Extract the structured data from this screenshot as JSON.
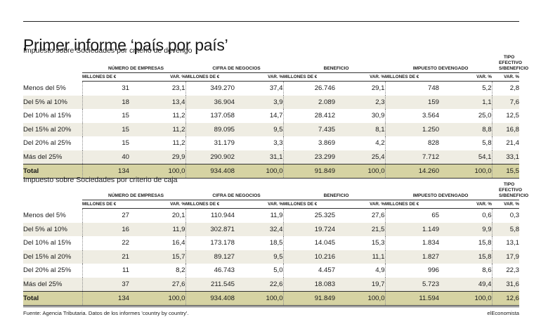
{
  "title": "Primer informe ‘país por país’",
  "source": "Fuente: Agencia Tributaria. Datos de los informes 'country by country'.",
  "brand": "elEconomista",
  "chart_data": [
    {
      "type": "table",
      "title": "Impuesto sobre Sociedades por criterio de devengo",
      "groups": [
        "NÚMERO DE EMPRESAS",
        "CIFRA DE NEGOCIOS",
        "BENEFICIO",
        "IMPUESTO DEVENGADO",
        "TIPO EFECTIVO S/BENEFICIO"
      ],
      "subheaders": [
        "MILLONES DE €",
        "VAR. %"
      ],
      "rows": [
        {
          "label": "Menos del 5%",
          "values": [
            "31",
            "23,1",
            "349.270",
            "37,4",
            "26.746",
            "29,1",
            "748",
            "5,2",
            "2,8"
          ]
        },
        {
          "label": "Del 5% al 10%",
          "values": [
            "18",
            "13,4",
            "36.904",
            "3,9",
            "2.089",
            "2,3",
            "159",
            "1,1",
            "7,6"
          ]
        },
        {
          "label": "Del 10% al 15%",
          "values": [
            "15",
            "11,2",
            "137.058",
            "14,7",
            "28.412",
            "30,9",
            "3.564",
            "25,0",
            "12,5"
          ]
        },
        {
          "label": "Del 15% al 20%",
          "values": [
            "15",
            "11,2",
            "89.095",
            "9,5",
            "7.435",
            "8,1",
            "1.250",
            "8,8",
            "16,8"
          ]
        },
        {
          "label": "Del 20% al 25%",
          "values": [
            "15",
            "11,2",
            "31.179",
            "3,3",
            "3.869",
            "4,2",
            "828",
            "5,8",
            "21,4"
          ]
        },
        {
          "label": "Más del 25%",
          "values": [
            "40",
            "29,9",
            "290.902",
            "31,1",
            "23.299",
            "25,4",
            "7.712",
            "54,1",
            "33,1"
          ]
        }
      ],
      "total": {
        "label": "Total",
        "values": [
          "134",
          "100,0",
          "934.408",
          "100,0",
          "91.849",
          "100,0",
          "14.260",
          "100,0",
          "15,5"
        ]
      }
    },
    {
      "type": "table",
      "title": "Impuesto sobre Sociedades por criterio de caja",
      "groups": [
        "NÚMERO DE EMPRESAS",
        "CIFRA DE NEGOCIOS",
        "BENEFICIO",
        "IMPUESTO DEVENGADO",
        "TIPO EFECTIVO S/BENEFICIO"
      ],
      "subheaders": [
        "MILLONES DE €",
        "VAR. %"
      ],
      "rows": [
        {
          "label": "Menos del 5%",
          "values": [
            "27",
            "20,1",
            "110.944",
            "11,9",
            "25.325",
            "27,6",
            "65",
            "0,6",
            "0,3"
          ]
        },
        {
          "label": "Del 5% al 10%",
          "values": [
            "16",
            "11,9",
            "302.871",
            "32,4",
            "19.724",
            "21,5",
            "1.149",
            "9,9",
            "5,8"
          ]
        },
        {
          "label": "Del 10% al 15%",
          "values": [
            "22",
            "16,4",
            "173.178",
            "18,5",
            "14.045",
            "15,3",
            "1.834",
            "15,8",
            "13,1"
          ]
        },
        {
          "label": "Del 15% al 20%",
          "values": [
            "21",
            "15,7",
            "89.127",
            "9,5",
            "10.216",
            "11,1",
            "1.827",
            "15,8",
            "17,9"
          ]
        },
        {
          "label": "Del 20% al 25%",
          "values": [
            "11",
            "8,2",
            "46.743",
            "5,0",
            "4.457",
            "4,9",
            "996",
            "8,6",
            "22,3"
          ]
        },
        {
          "label": "Más del 25%",
          "values": [
            "37",
            "27,6",
            "211.545",
            "22,6",
            "18.083",
            "19,7",
            "5.723",
            "49,4",
            "31,6"
          ]
        }
      ],
      "total": {
        "label": "Total",
        "values": [
          "134",
          "100,0",
          "934.408",
          "100,0",
          "91.849",
          "100,0",
          "11.594",
          "100,0",
          "12,6"
        ]
      }
    }
  ]
}
